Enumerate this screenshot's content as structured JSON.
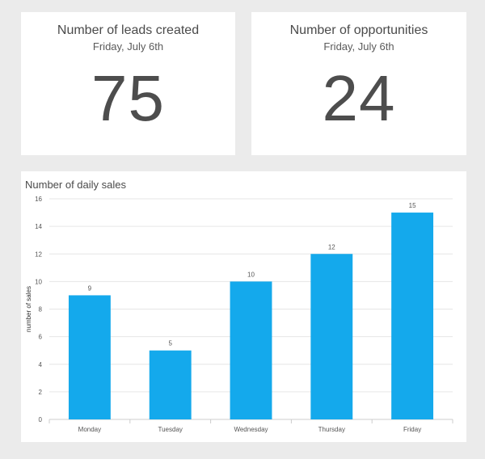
{
  "kpis": [
    {
      "title": "Number of leads created",
      "subtitle": "Friday, July 6th",
      "value": "75"
    },
    {
      "title": "Number of opportunities",
      "subtitle": "Friday, July 6th",
      "value": "24"
    }
  ],
  "colors": {
    "bar": "#14a9ec",
    "grid": "#e6e6e6",
    "axis": "#cccccc",
    "text": "#555555",
    "background": "#ebebeb"
  },
  "chart_data": {
    "type": "bar",
    "title": "Number of daily sales",
    "xlabel": "",
    "ylabel": "number of sales",
    "categories": [
      "Monday",
      "Tuesday",
      "Wednesday",
      "Thursday",
      "Friday"
    ],
    "values": [
      9,
      5,
      10,
      12,
      15
    ],
    "ylim": [
      0,
      16
    ],
    "yticks": [
      "0",
      "2",
      "4",
      "6",
      "8",
      "10",
      "12",
      "14",
      "16"
    ],
    "grid": true,
    "data_labels": true
  }
}
